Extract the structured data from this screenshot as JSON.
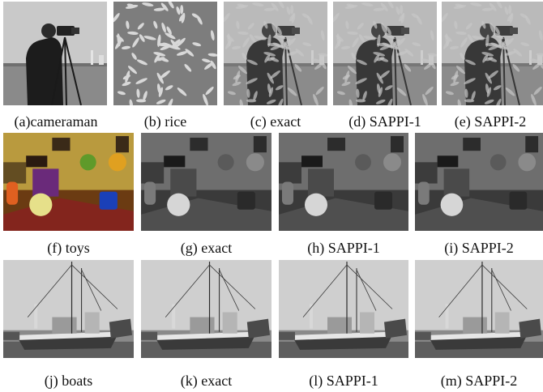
{
  "figure": {
    "row1": [
      {
        "id": "a",
        "caption": "(a)cameraman",
        "content": "cameraman-gray"
      },
      {
        "id": "b",
        "caption": "(b) rice",
        "content": "rice-grains"
      },
      {
        "id": "c",
        "caption": "(c) exact",
        "content": "cameraman-rice-overlay"
      },
      {
        "id": "d",
        "caption": "(d) SAPPI-1",
        "content": "cameraman-rice-overlay"
      },
      {
        "id": "e",
        "caption": "(e) SAPPI-2",
        "content": "cameraman-rice-overlay"
      }
    ],
    "row2": [
      {
        "id": "f",
        "caption": "(f) toys",
        "content": "toys-color"
      },
      {
        "id": "g",
        "caption": "(g) exact",
        "content": "toys-gray"
      },
      {
        "id": "h",
        "caption": "(h) SAPPI-1",
        "content": "toys-gray"
      },
      {
        "id": "i",
        "caption": "(i) SAPPI-2",
        "content": "toys-gray"
      }
    ],
    "row3": [
      {
        "id": "j",
        "caption": "(j) boats",
        "content": "boats-gray"
      },
      {
        "id": "k",
        "caption": "(k) exact",
        "content": "boats-gray"
      },
      {
        "id": "l",
        "caption": "(l) SAPPI-1",
        "content": "boats-gray"
      },
      {
        "id": "m",
        "caption": "(m) SAPPI-2",
        "content": "boats-gray"
      }
    ]
  }
}
